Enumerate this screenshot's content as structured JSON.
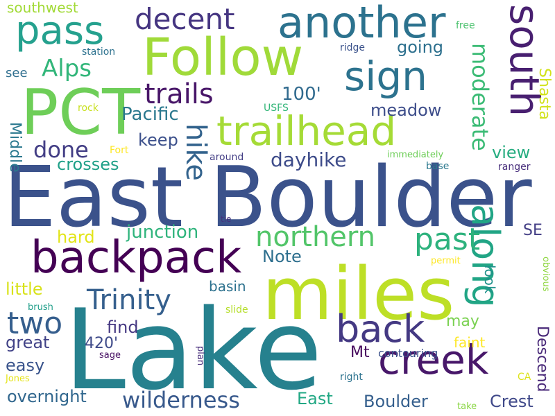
{
  "words": [
    {
      "text": "Lake",
      "color": "#26818e"
    },
    {
      "text": "East Boulder",
      "color": "#3b528b"
    },
    {
      "text": "miles",
      "color": "#bddf26"
    },
    {
      "text": "Follow",
      "color": "#a0da39"
    },
    {
      "text": "PCT",
      "color": "#6ece58"
    },
    {
      "text": "another",
      "color": "#2c728e"
    },
    {
      "text": "trailhead",
      "color": "#a5db36"
    },
    {
      "text": "backpack",
      "color": "#440154"
    },
    {
      "text": "pass",
      "color": "#25a18e"
    },
    {
      "text": "sign",
      "color": "#2c728e"
    },
    {
      "text": "creek",
      "color": "#48186a"
    },
    {
      "text": "back",
      "color": "#443983"
    },
    {
      "text": "along",
      "color": "#21a585"
    },
    {
      "text": "south",
      "color": "#481f70"
    },
    {
      "text": "northern",
      "color": "#52c569"
    },
    {
      "text": "past",
      "color": "#2db27d"
    },
    {
      "text": "trails",
      "color": "#481668"
    },
    {
      "text": "decent",
      "color": "#453581"
    },
    {
      "text": "Trinity",
      "color": "#355f8d"
    },
    {
      "text": "two",
      "color": "#355e8d"
    },
    {
      "text": "hike",
      "color": "#33638d"
    },
    {
      "text": "Alps",
      "color": "#32b67a"
    },
    {
      "text": "moderate",
      "color": "#3bbb75"
    },
    {
      "text": "Pacific",
      "color": "#2a788e"
    },
    {
      "text": "done",
      "color": "#433e85"
    },
    {
      "text": "wilderness",
      "color": "#38598c"
    },
    {
      "text": "dayhike",
      "color": "#3e4c8a"
    },
    {
      "text": "junction",
      "color": "#2fb47c"
    },
    {
      "text": "Boulder",
      "color": "#355f8d"
    },
    {
      "text": "overnight",
      "color": "#31678e"
    },
    {
      "text": "East",
      "color": "#22a884"
    },
    {
      "text": "Crest",
      "color": "#3f4889"
    },
    {
      "text": "Descend",
      "color": "#482878"
    },
    {
      "text": "meadow",
      "color": "#3d4d8a"
    },
    {
      "text": "southwest",
      "color": "#a2da37"
    },
    {
      "text": "Shasta",
      "color": "#d2e21b"
    },
    {
      "text": "crosses",
      "color": "#1fa088"
    },
    {
      "text": "keep",
      "color": "#3c508b"
    },
    {
      "text": "going",
      "color": "#2d708e"
    },
    {
      "text": "100'",
      "color": "#306a8e"
    },
    {
      "text": "view",
      "color": "#27ad81"
    },
    {
      "text": "Note",
      "color": "#2e6f8e"
    },
    {
      "text": "hard",
      "color": "#e2e418"
    },
    {
      "text": "little",
      "color": "#d8e219"
    },
    {
      "text": "basin",
      "color": "#2c718e"
    },
    {
      "text": "find",
      "color": "#453882"
    },
    {
      "text": "great",
      "color": "#414287"
    },
    {
      "text": "easy",
      "color": "#3a548c"
    },
    {
      "text": "420'",
      "color": "#3e4a89"
    },
    {
      "text": "Mt",
      "color": "#460a5d"
    },
    {
      "text": "may",
      "color": "#7ad151"
    },
    {
      "text": "faint",
      "color": "#fde725"
    },
    {
      "text": "look",
      "color": "#21918c"
    },
    {
      "text": "SE",
      "color": "#433e85"
    },
    {
      "text": "Middle",
      "color": "#2a788e"
    },
    {
      "text": "see",
      "color": "#2e6e8e"
    },
    {
      "text": "station",
      "color": "#2c718e"
    },
    {
      "text": "ridge",
      "color": "#3b528b"
    },
    {
      "text": "free",
      "color": "#4ac16d"
    },
    {
      "text": "rock",
      "color": "#c8e020"
    },
    {
      "text": "USFS",
      "color": "#34b679"
    },
    {
      "text": "Fort",
      "color": "#fde725"
    },
    {
      "text": "around",
      "color": "#433e85"
    },
    {
      "text": "immediately",
      "color": "#6ece58"
    },
    {
      "text": "base",
      "color": "#2a788e"
    },
    {
      "text": "ranger",
      "color": "#472d7b"
    },
    {
      "text": "tie",
      "color": "#46327e"
    },
    {
      "text": "permit",
      "color": "#fde725"
    },
    {
      "text": "obvious",
      "color": "#90d743"
    },
    {
      "text": "brush",
      "color": "#1f9e89"
    },
    {
      "text": "slide",
      "color": "#b5de2b"
    },
    {
      "text": "contouring",
      "color": "#3b528b"
    },
    {
      "text": "sage",
      "color": "#471063"
    },
    {
      "text": "plan",
      "color": "#472d7b"
    },
    {
      "text": "Jones",
      "color": "#e5e419"
    },
    {
      "text": "right",
      "color": "#2c728e"
    },
    {
      "text": "CA",
      "color": "#dde318"
    },
    {
      "text": "take",
      "color": "#8bd646"
    }
  ]
}
